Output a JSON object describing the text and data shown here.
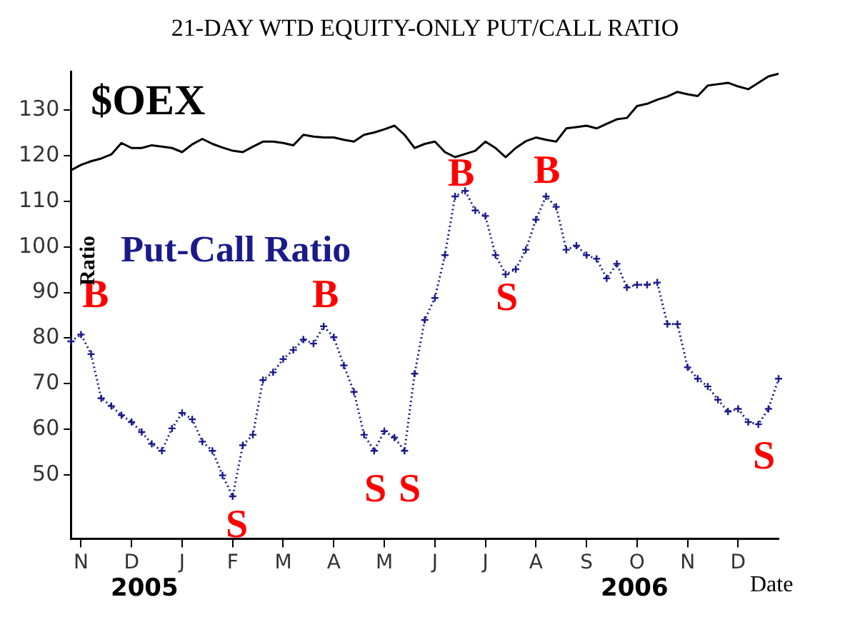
{
  "chart_data": {
    "type": "line",
    "title": "21-DAY WTD EQUITY-ONLY PUT/CALL RATIO",
    "xlabel": "Date",
    "ylabel": "Ratio",
    "categories": [
      null,
      "N",
      null,
      null,
      null,
      null,
      "D",
      null,
      null,
      null,
      null,
      "J",
      null,
      null,
      null,
      null,
      "F",
      null,
      null,
      null,
      null,
      "M",
      null,
      null,
      null,
      null,
      "A",
      null,
      null,
      null,
      null,
      "M",
      null,
      null,
      null,
      null,
      "J",
      null,
      null,
      null,
      null,
      "J",
      null,
      null,
      null,
      null,
      "A",
      null,
      null,
      null,
      null,
      "S",
      null,
      null,
      null,
      null,
      "O",
      null,
      null,
      null,
      null,
      "N",
      null,
      null,
      null,
      null,
      "D",
      null,
      null,
      null,
      null
    ],
    "ylim": [
      36,
      138.5
    ],
    "yticks": [
      50,
      60,
      70,
      80,
      90,
      100,
      110,
      120,
      130
    ],
    "grid": false,
    "legend": false,
    "series": [
      {
        "name": "$OEX",
        "color": "#000000",
        "line_style": "solid",
        "marker": "none",
        "values": [
          116.8,
          118.0,
          118.8,
          119.4,
          120.3,
          122.8,
          121.7,
          121.7,
          122.3,
          122.0,
          121.7,
          120.8,
          122.5,
          123.7,
          122.6,
          121.8,
          121.1,
          120.8,
          122.0,
          123.1,
          123.1,
          122.8,
          122.3,
          124.6,
          124.2,
          124.0,
          124.0,
          123.5,
          123.1,
          124.6,
          125.1,
          125.8,
          126.6,
          124.6,
          121.7,
          122.6,
          123.1,
          120.8,
          119.7,
          120.4,
          121.1,
          123.1,
          121.7,
          119.7,
          121.7,
          123.2,
          124.0,
          123.5,
          123.1,
          126.0,
          126.3,
          126.6,
          126.0,
          127.0,
          128.0,
          128.3,
          130.9,
          131.4,
          132.3,
          133.0,
          134.0,
          133.5,
          133.1,
          135.4,
          135.7,
          136.0,
          135.2,
          134.6,
          136.0,
          137.4,
          138.0
        ]
      },
      {
        "name": "Put-Call Ratio",
        "color": "#1a1a8c",
        "line_style": "dotted",
        "marker": "cross",
        "values": [
          79.3,
          80.8,
          76.5,
          66.8,
          65.1,
          63.1,
          61.6,
          59.4,
          56.8,
          55.3,
          60.2,
          63.6,
          62.2,
          57.3,
          55.3,
          49.9,
          45.3,
          56.5,
          58.8,
          70.8,
          72.5,
          75.4,
          77.4,
          79.7,
          78.8,
          82.6,
          80.2,
          74.0,
          68.2,
          58.8,
          55.3,
          59.6,
          58.2,
          55.3,
          72.2,
          84.0,
          88.8,
          98.2,
          111.1,
          112.3,
          108.0,
          106.8,
          98.2,
          94.0,
          95.1,
          99.4,
          106.0,
          111.1,
          108.8,
          99.4,
          100.3,
          98.2,
          97.4,
          93.1,
          96.3,
          91.1,
          91.7,
          91.7,
          92.2,
          83.1,
          83.1,
          73.6,
          71.1,
          69.4,
          66.5,
          63.9,
          64.5,
          61.6,
          61.1,
          64.5,
          71.1
        ]
      }
    ],
    "annotations": [
      "B",
      "B",
      "B",
      "B",
      "S",
      "S",
      "S",
      "S",
      "S",
      "2005",
      "2006"
    ]
  }
}
